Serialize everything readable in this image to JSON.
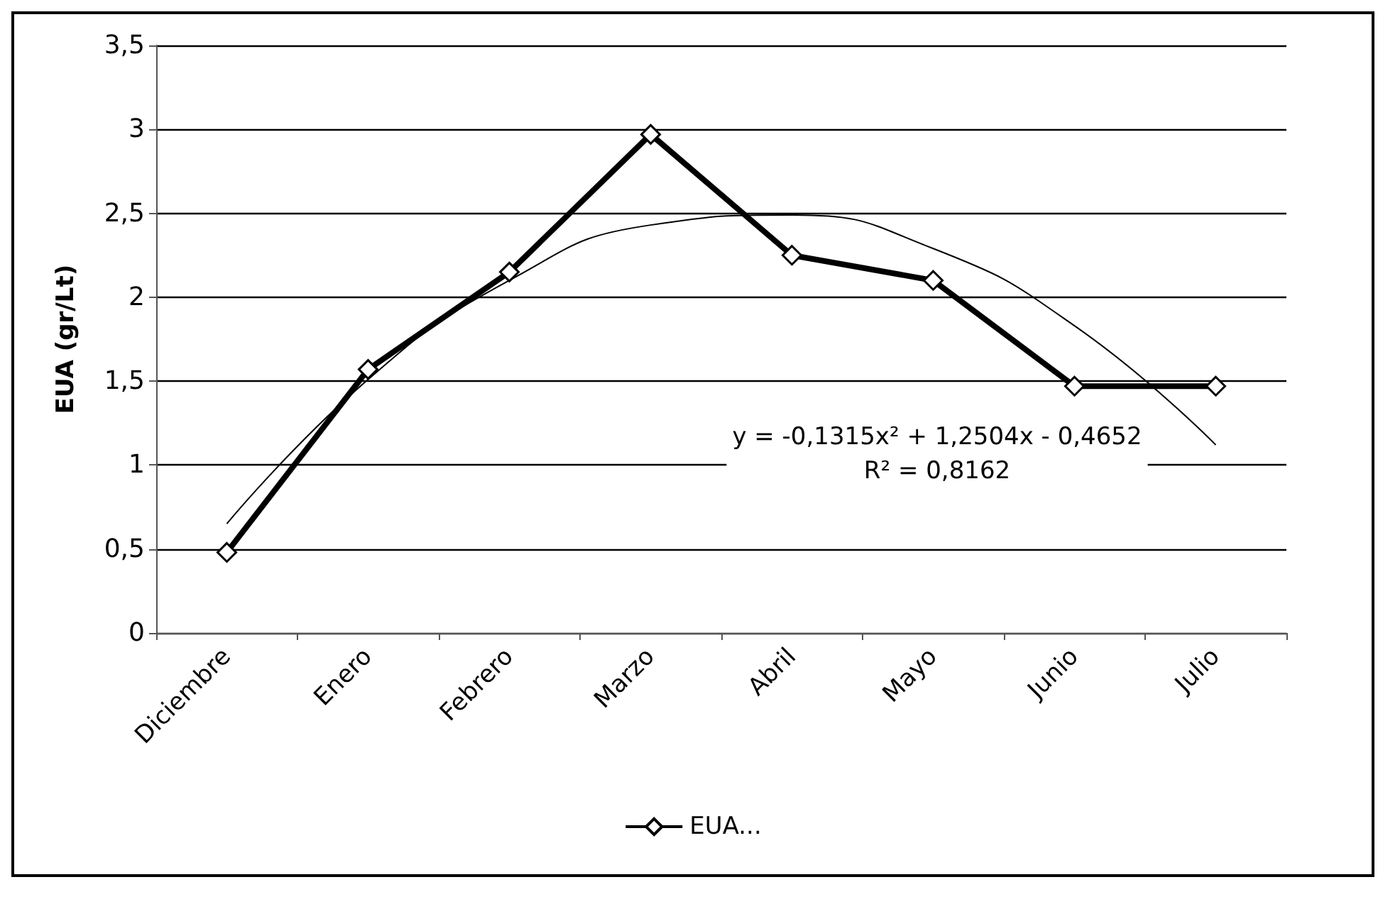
{
  "chart_data": {
    "type": "line",
    "ylabel": "EUA (gr/Lt)",
    "categories": [
      "Diciembre",
      "Enero",
      "Febrero",
      "Marzo",
      "Abril",
      "Mayo",
      "Junio",
      "Julio"
    ],
    "series": [
      {
        "name": "EUA...",
        "color": "#000000",
        "values": [
          0.48,
          1.57,
          2.15,
          2.97,
          2.25,
          2.1,
          1.47,
          1.47
        ],
        "marker": "diamond"
      },
      {
        "type": "line",
        "color": "#000000",
        "values": [
          0.65,
          1.51,
          2.1,
          2.43,
          2.49,
          2.29,
          1.83,
          1.12
        ],
        "marker": "none"
      }
    ],
    "ylim": [
      0,
      3.5
    ],
    "yticks": [
      0,
      {
        "value": 0.5,
        "label": "0,5"
      },
      1,
      {
        "value": 1.5,
        "label": "1,5"
      },
      2,
      {
        "value": 2.5,
        "label": "2,5"
      },
      3,
      {
        "value": 3.5,
        "label": "3,5"
      }
    ],
    "grid": "y",
    "legend": "bottom",
    "annotations": [
      "y = -0,1315x² + 1,2504x - 0,4652\nR² = 0,8162"
    ]
  }
}
